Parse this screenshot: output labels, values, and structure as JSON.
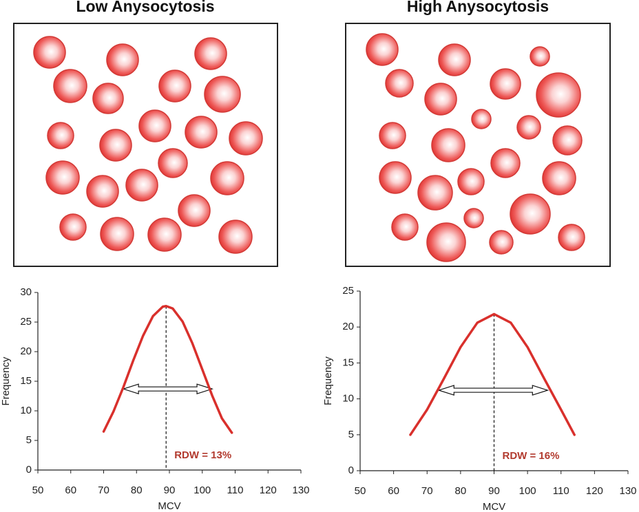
{
  "titles": [
    "Low Anysocytosis",
    "High Anysocytosis"
  ],
  "chart_data": [
    {
      "type": "line",
      "xlabel": "MCV",
      "ylabel": "Frequency",
      "x": [
        70,
        73,
        76,
        79,
        82,
        85,
        88,
        89,
        91,
        94,
        97,
        100,
        103,
        106,
        109
      ],
      "series": [
        {
          "color": "#d9302c",
          "values": [
            6.5,
            9.9,
            14.0,
            18.5,
            22.7,
            26.0,
            27.6,
            27.7,
            27.3,
            25.1,
            21.4,
            17.0,
            12.6,
            8.7,
            6.3
          ]
        }
      ],
      "xlim": [
        50,
        130
      ],
      "xticks": [
        50,
        60,
        70,
        80,
        90,
        100,
        110,
        120,
        130
      ],
      "ylim": [
        0,
        30
      ],
      "yticks": [
        0,
        5,
        10,
        15,
        20,
        25,
        30
      ],
      "reference_x": 89,
      "arrow": {
        "y": 13.7,
        "x1": 76,
        "x2": 103
      },
      "annotation": "RDW = 13%"
    },
    {
      "type": "line",
      "xlabel": "MCV",
      "ylabel": "Frequency",
      "x": [
        65,
        70,
        75,
        80,
        85,
        90,
        95,
        100,
        105,
        110,
        114
      ],
      "series": [
        {
          "color": "#d9302c",
          "values": [
            5,
            8.5,
            12.8,
            17.2,
            20.6,
            21.8,
            20.6,
            17.2,
            12.8,
            8.5,
            5
          ]
        }
      ],
      "xlim": [
        50,
        130
      ],
      "xticks": [
        50,
        60,
        70,
        80,
        90,
        100,
        110,
        120,
        130
      ],
      "ylim": [
        0,
        25
      ],
      "yticks": [
        0,
        5,
        10,
        15,
        20,
        25
      ],
      "reference_x": 90,
      "arrow": {
        "y": 11.2,
        "x1": 73.5,
        "x2": 106
      },
      "annotation": "RDW = 16%"
    }
  ]
}
